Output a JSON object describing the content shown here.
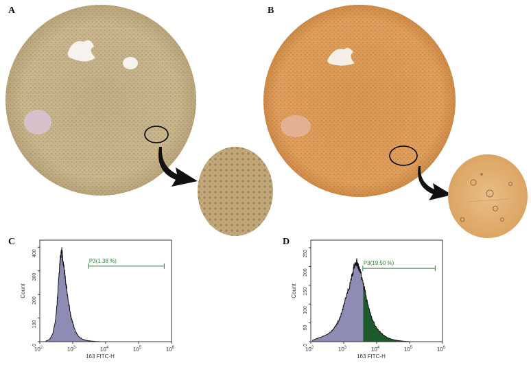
{
  "figure": {
    "panels": [
      {
        "id": "A",
        "kind": "micrograph-with-inset"
      },
      {
        "id": "B",
        "kind": "micrograph-with-inset"
      },
      {
        "id": "C",
        "kind": "flow-histogram"
      },
      {
        "id": "D",
        "kind": "flow-histogram"
      }
    ],
    "colors": {
      "panelA_field": "#c9b589",
      "panelA_inset": "#c4aa7a",
      "panelB_field": "#de9a55",
      "panelB_inset": "#e3b073",
      "histogram_fill": "#8e8bb4",
      "gated_fill": "#1d5a2c",
      "gate_line": "#2e7d3a",
      "arrow": "#111111"
    },
    "icons": [
      "curved-arrow-icon"
    ]
  },
  "chart_data": [
    {
      "panel": "C",
      "type": "area",
      "xlabel": "163 FITC-H",
      "ylabel": "Count",
      "x_scale": "log",
      "xlim": [
        100,
        1000000
      ],
      "ylim": [
        0,
        430
      ],
      "x_ticks": [
        {
          "label_base": "10",
          "label_exp": "2",
          "value": 100
        },
        {
          "label_base": "10",
          "label_exp": "3",
          "value": 1000
        },
        {
          "label_base": "10",
          "label_exp": "4",
          "value": 10000
        },
        {
          "label_base": "10",
          "label_exp": "5",
          "value": 100000
        },
        {
          "label_base": "10",
          "label_exp": "6",
          "value": 1000000
        }
      ],
      "y_ticks": [
        "0",
        "100",
        "200",
        "300",
        "400"
      ],
      "y_tick_values": [
        0,
        100,
        200,
        300,
        400
      ],
      "gate": {
        "label": "P3(1.38 %)",
        "from": 3000,
        "to": 600000,
        "level": 320
      },
      "series": [
        {
          "x": [
            150,
            200,
            250,
            300,
            330,
            360,
            400,
            430,
            460,
            480,
            500,
            530,
            560,
            600,
            650,
            700,
            800,
            900,
            1000,
            1200,
            1500,
            2000,
            2500,
            3000,
            4000,
            5000,
            7000
          ],
          "y": [
            2,
            10,
            35,
            90,
            150,
            230,
            320,
            360,
            390,
            380,
            345,
            320,
            300,
            260,
            230,
            190,
            140,
            100,
            80,
            45,
            22,
            10,
            6,
            4,
            2,
            1,
            0
          ]
        }
      ]
    },
    {
      "panel": "D",
      "type": "area",
      "xlabel": "163 FITC-H",
      "ylabel": "Count",
      "x_scale": "log",
      "xlim": [
        100,
        1000000
      ],
      "ylim": [
        0,
        270
      ],
      "x_ticks": [
        {
          "label_base": "10",
          "label_exp": "2",
          "value": 100
        },
        {
          "label_base": "10",
          "label_exp": "3",
          "value": 1000
        },
        {
          "label_base": "10",
          "label_exp": "4",
          "value": 10000
        },
        {
          "label_base": "10",
          "label_exp": "5",
          "value": 100000
        },
        {
          "label_base": "10",
          "label_exp": "6",
          "value": 1000000
        }
      ],
      "y_ticks": [
        "0",
        "50",
        "100",
        "150",
        "200",
        "250"
      ],
      "y_tick_values": [
        0,
        50,
        100,
        150,
        200,
        250
      ],
      "gate": {
        "label": "P3(19.50 %)",
        "from": 3800,
        "to": 600000,
        "level": 195
      },
      "series": [
        {
          "x": [
            110,
            150,
            200,
            300,
            400,
            500,
            600,
            700,
            800,
            900,
            1000,
            1200,
            1500,
            1800,
            2000,
            2200,
            2500,
            2800,
            3200,
            3800,
            4500,
            5500,
            7000,
            9000,
            12000,
            16000,
            22000,
            30000,
            45000,
            70000,
            100000
          ],
          "y": [
            3,
            8,
            12,
            18,
            25,
            35,
            45,
            55,
            68,
            82,
            98,
            120,
            148,
            175,
            195,
            205,
            210,
            200,
            185,
            160,
            130,
            95,
            65,
            42,
            28,
            18,
            10,
            6,
            3,
            1,
            0
          ]
        }
      ]
    }
  ]
}
